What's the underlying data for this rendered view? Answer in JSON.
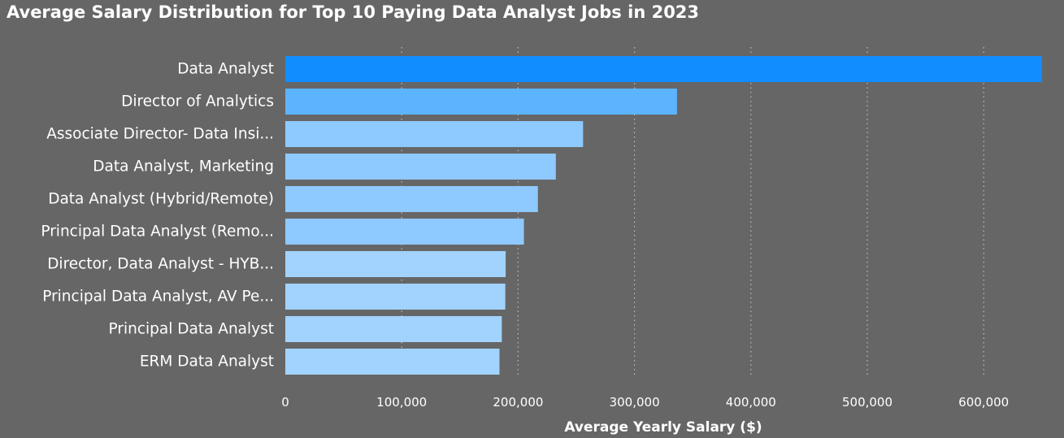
{
  "chart_data": {
    "type": "bar",
    "orientation": "horizontal",
    "title": "Average Salary Distribution for Top 10 Paying Data Analyst Jobs in 2023",
    "xlabel": "Average Yearly Salary ($)",
    "ylabel": "",
    "xlim": [
      0,
      650000
    ],
    "x_ticks": [
      0,
      100000,
      200000,
      300000,
      400000,
      500000,
      600000
    ],
    "x_tick_labels": [
      "0",
      "100,000",
      "200,000",
      "300,000",
      "400,000",
      "500,000",
      "600,000"
    ],
    "grid": "vertical-dotted",
    "categories": [
      "Data Analyst",
      "Director of Analytics",
      "Associate Director- Data Insi...",
      "Data Analyst, Marketing",
      "Data Analyst (Hybrid/Remote)",
      "Principal Data Analyst (Remo...",
      "Director, Data Analyst - HYB...",
      "Principal Data Analyst, AV Pe...",
      "Principal Data Analyst",
      "ERM Data Analyst"
    ],
    "values": [
      650000,
      336500,
      255830,
      232423,
      217000,
      205000,
      189309,
      189000,
      186000,
      184000
    ],
    "colors": [
      "#118dff",
      "#5cb4ff",
      "#8ec9ff",
      "#8ec9ff",
      "#8ec9ff",
      "#8ec9ff",
      "#a2d3ff",
      "#a2d3ff",
      "#a2d3ff",
      "#a2d3ff"
    ]
  },
  "colors": {
    "background": "#666666",
    "text": "#ffffff",
    "gridline": "#bdbdbd"
  }
}
